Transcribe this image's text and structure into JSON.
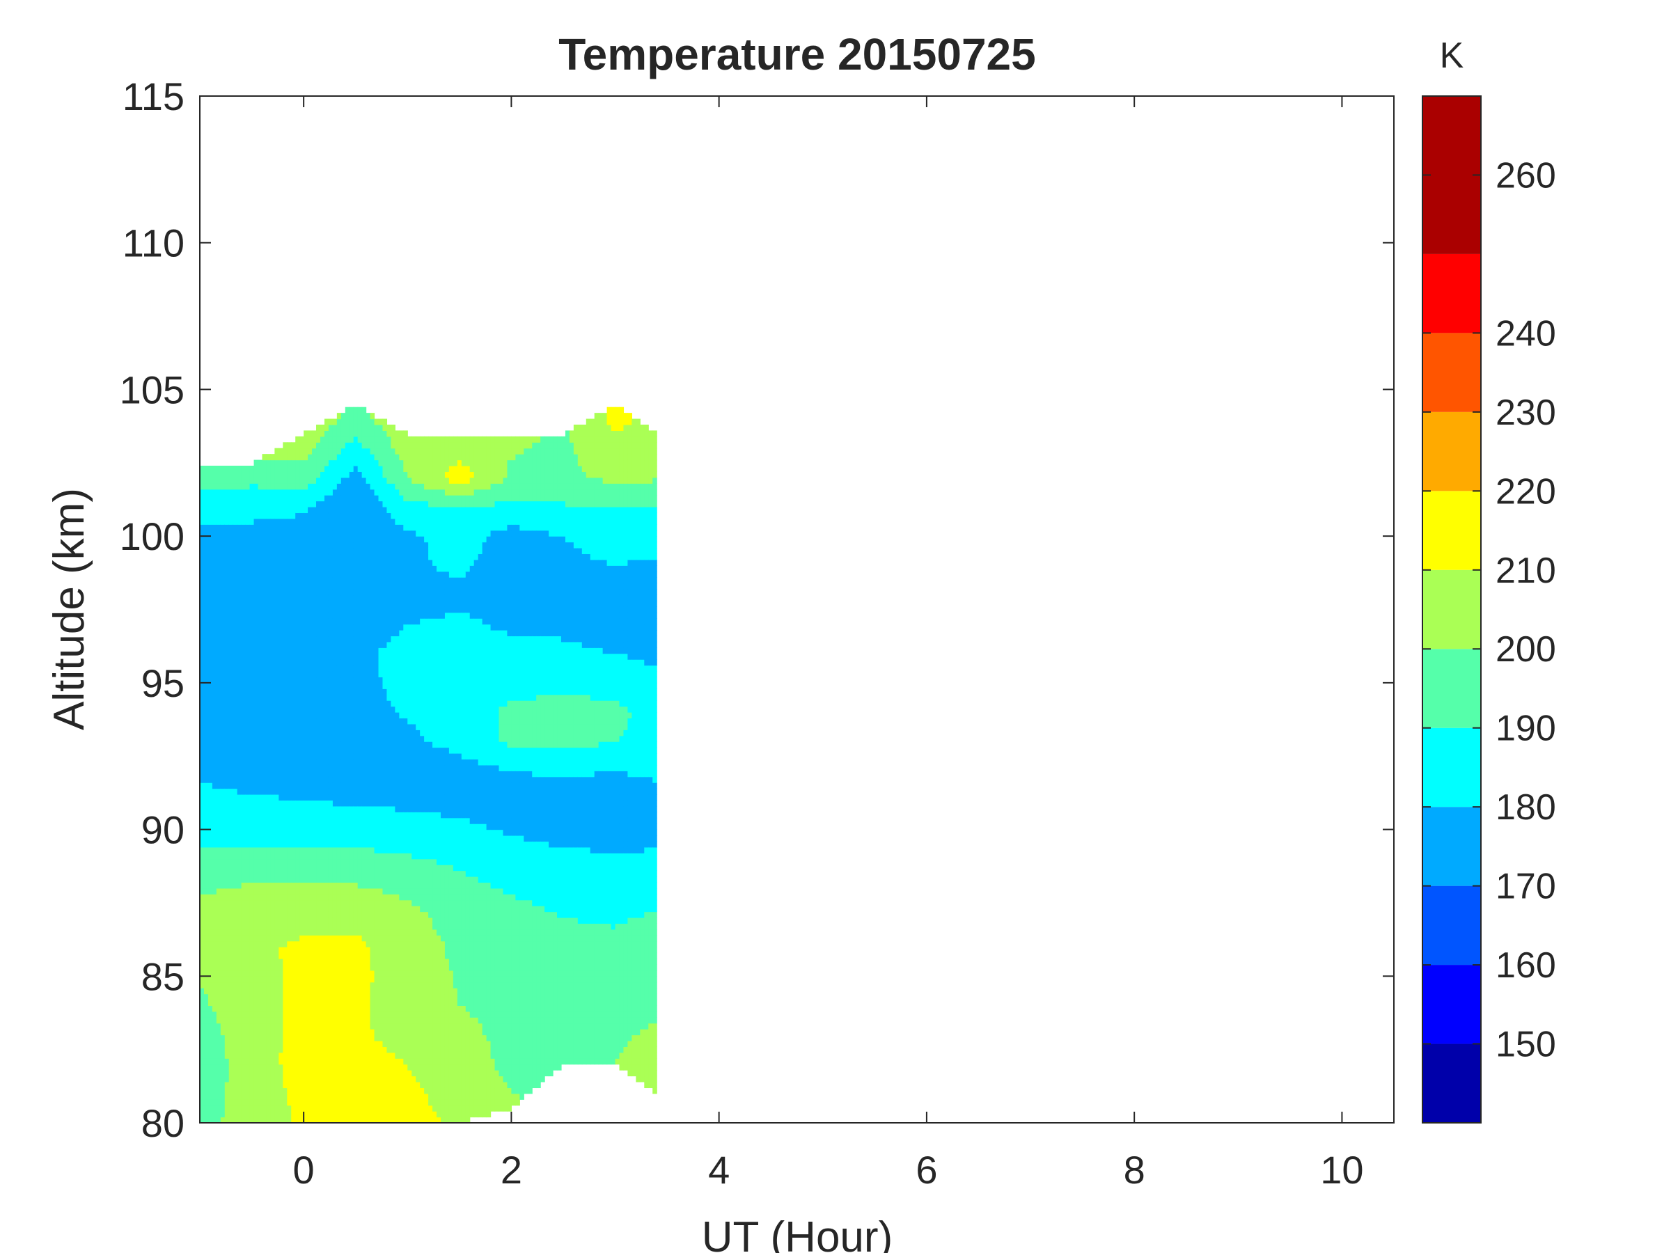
{
  "chart_data": {
    "type": "heatmap",
    "subtype": "filled contour",
    "title": "Temperature 20150725",
    "xlabel": "UT (Hour)",
    "ylabel": "Altitude (km)",
    "xlim": [
      -1,
      10.5
    ],
    "ylim": [
      80,
      115
    ],
    "xticks": [
      0,
      2,
      4,
      6,
      8,
      10
    ],
    "yticks": [
      80,
      85,
      90,
      95,
      100,
      105,
      110,
      115
    ],
    "data_extent_x": [
      -1,
      3.4
    ],
    "data_extent_y": [
      80,
      104.5
    ],
    "colorbar": {
      "label": "K",
      "range": [
        140,
        270
      ],
      "ticks": [
        150,
        160,
        170,
        180,
        190,
        200,
        210,
        220,
        230,
        240,
        260
      ],
      "levels": [
        {
          "from": 140,
          "to": 150,
          "color": "#0000aa"
        },
        {
          "from": 150,
          "to": 160,
          "color": "#0000ff"
        },
        {
          "from": 160,
          "to": 170,
          "color": "#0055ff"
        },
        {
          "from": 170,
          "to": 180,
          "color": "#00aaff"
        },
        {
          "from": 180,
          "to": 190,
          "color": "#00ffff"
        },
        {
          "from": 190,
          "to": 200,
          "color": "#55ffaa"
        },
        {
          "from": 200,
          "to": 210,
          "color": "#aaff55"
        },
        {
          "from": 210,
          "to": 220,
          "color": "#ffff00"
        },
        {
          "from": 220,
          "to": 230,
          "color": "#ffaa00"
        },
        {
          "from": 230,
          "to": 240,
          "color": "#ff5500"
        },
        {
          "from": 240,
          "to": 250,
          "color": "#ff0000"
        },
        {
          "from": 250,
          "to": 270,
          "color": "#aa0000"
        }
      ]
    },
    "field": {
      "x": [
        -1.0,
        -0.5,
        0.0,
        0.5,
        1.0,
        1.5,
        2.0,
        2.5,
        3.0,
        3.4
      ],
      "y": [
        80,
        81,
        82,
        83,
        84,
        85,
        86,
        87,
        88,
        89,
        90,
        91,
        92,
        93,
        94,
        95,
        96,
        97,
        98,
        99,
        100,
        101,
        102,
        103,
        104
      ],
      "top_km": [
        102.5,
        102.5,
        103.5,
        104.5,
        103.5,
        103.5,
        103.5,
        103.5,
        104.5,
        103.5
      ],
      "bottom_km": [
        80,
        80,
        80,
        80,
        80,
        80,
        80.5,
        82,
        82,
        81
      ],
      "values_K": [
        [
          198,
          203,
          212,
          215,
          214,
          208,
          205,
          199,
          200,
          202
        ],
        [
          196,
          204,
          213,
          214,
          212,
          206,
          200,
          197,
          200,
          203
        ],
        [
          194,
          205,
          214,
          212,
          210,
          204,
          198,
          196,
          200,
          204
        ],
        [
          195,
          206,
          213,
          211,
          208,
          202,
          198,
          196,
          199,
          201
        ],
        [
          198,
          207,
          212,
          211,
          207,
          200,
          198,
          195,
          196,
          199
        ],
        [
          201,
          207,
          212,
          212,
          206,
          199,
          197,
          194,
          194,
          197
        ],
        [
          205,
          209,
          211,
          212,
          205,
          198,
          196,
          193,
          192,
          195
        ],
        [
          203,
          206,
          208,
          207,
          203,
          196,
          193,
          190,
          189,
          191
        ],
        [
          199,
          201,
          202,
          201,
          198,
          193,
          189,
          187,
          186,
          188
        ],
        [
          194,
          194,
          194,
          193,
          191,
          188,
          184,
          182,
          181,
          182
        ],
        [
          186,
          186,
          186,
          185,
          184,
          182,
          179,
          177,
          176,
          176
        ],
        [
          182,
          181,
          180,
          179,
          178,
          177,
          177,
          176,
          177,
          178
        ],
        [
          179,
          176,
          175,
          174,
          174,
          176,
          180,
          181,
          180,
          181
        ],
        [
          174,
          173,
          172,
          174,
          178,
          183,
          192,
          193,
          190,
          186
        ],
        [
          176,
          173,
          172,
          176,
          181,
          184,
          192,
          194,
          193,
          186
        ],
        [
          176,
          172,
          170,
          176,
          184,
          186,
          187,
          187,
          186,
          182
        ],
        [
          174,
          172,
          172,
          178,
          183,
          184,
          184,
          182,
          180,
          178
        ],
        [
          175,
          173,
          172,
          175,
          180,
          182,
          178,
          178,
          176,
          176
        ],
        [
          174,
          174,
          174,
          173,
          176,
          177,
          176,
          178,
          177,
          176
        ],
        [
          176,
          175,
          175,
          172,
          178,
          182,
          175,
          179,
          180,
          179
        ],
        [
          176,
          175,
          174,
          172,
          178,
          184,
          176,
          180,
          182,
          183
        ],
        [
          186,
          185,
          182,
          170,
          187,
          190,
          188,
          189,
          190,
          190
        ],
        [
          194,
          192,
          195,
          176,
          200,
          215,
          198,
          198,
          202,
          201
        ],
        [
          205,
          203,
          204,
          186,
          205,
          206,
          201,
          198,
          208,
          205
        ],
        [
          208,
          206,
          206,
          198,
          206,
          207,
          203,
          200,
          212,
          208
        ]
      ]
    }
  }
}
